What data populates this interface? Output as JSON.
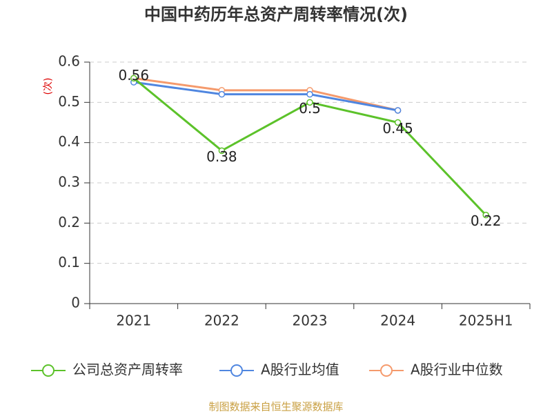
{
  "chart_data": {
    "type": "line",
    "title": "中国中药历年总资产周转率情况(次)",
    "y_label": "(次)",
    "categories": [
      "2021",
      "2022",
      "2023",
      "2024",
      "2025H1"
    ],
    "series": [
      {
        "name": "公司总资产周转率",
        "color": "#5cc22a",
        "values": [
          0.56,
          0.38,
          0.5,
          0.45,
          0.22
        ],
        "show_labels": true
      },
      {
        "name": "A股行业均值",
        "color": "#4f86e0",
        "values": [
          0.55,
          0.52,
          0.52,
          0.48,
          null
        ],
        "show_labels": false
      },
      {
        "name": "A股行业中位数",
        "color": "#f59a6c",
        "values": [
          0.56,
          0.53,
          0.53,
          0.48,
          null
        ],
        "show_labels": false
      }
    ],
    "ylim": [
      0,
      0.6
    ],
    "yticks": [
      0,
      0.1,
      0.2,
      0.3,
      0.4,
      0.5,
      0.6
    ],
    "grid": true,
    "legend": "bottom",
    "source": "制图数据来自恒生聚源数据库"
  }
}
